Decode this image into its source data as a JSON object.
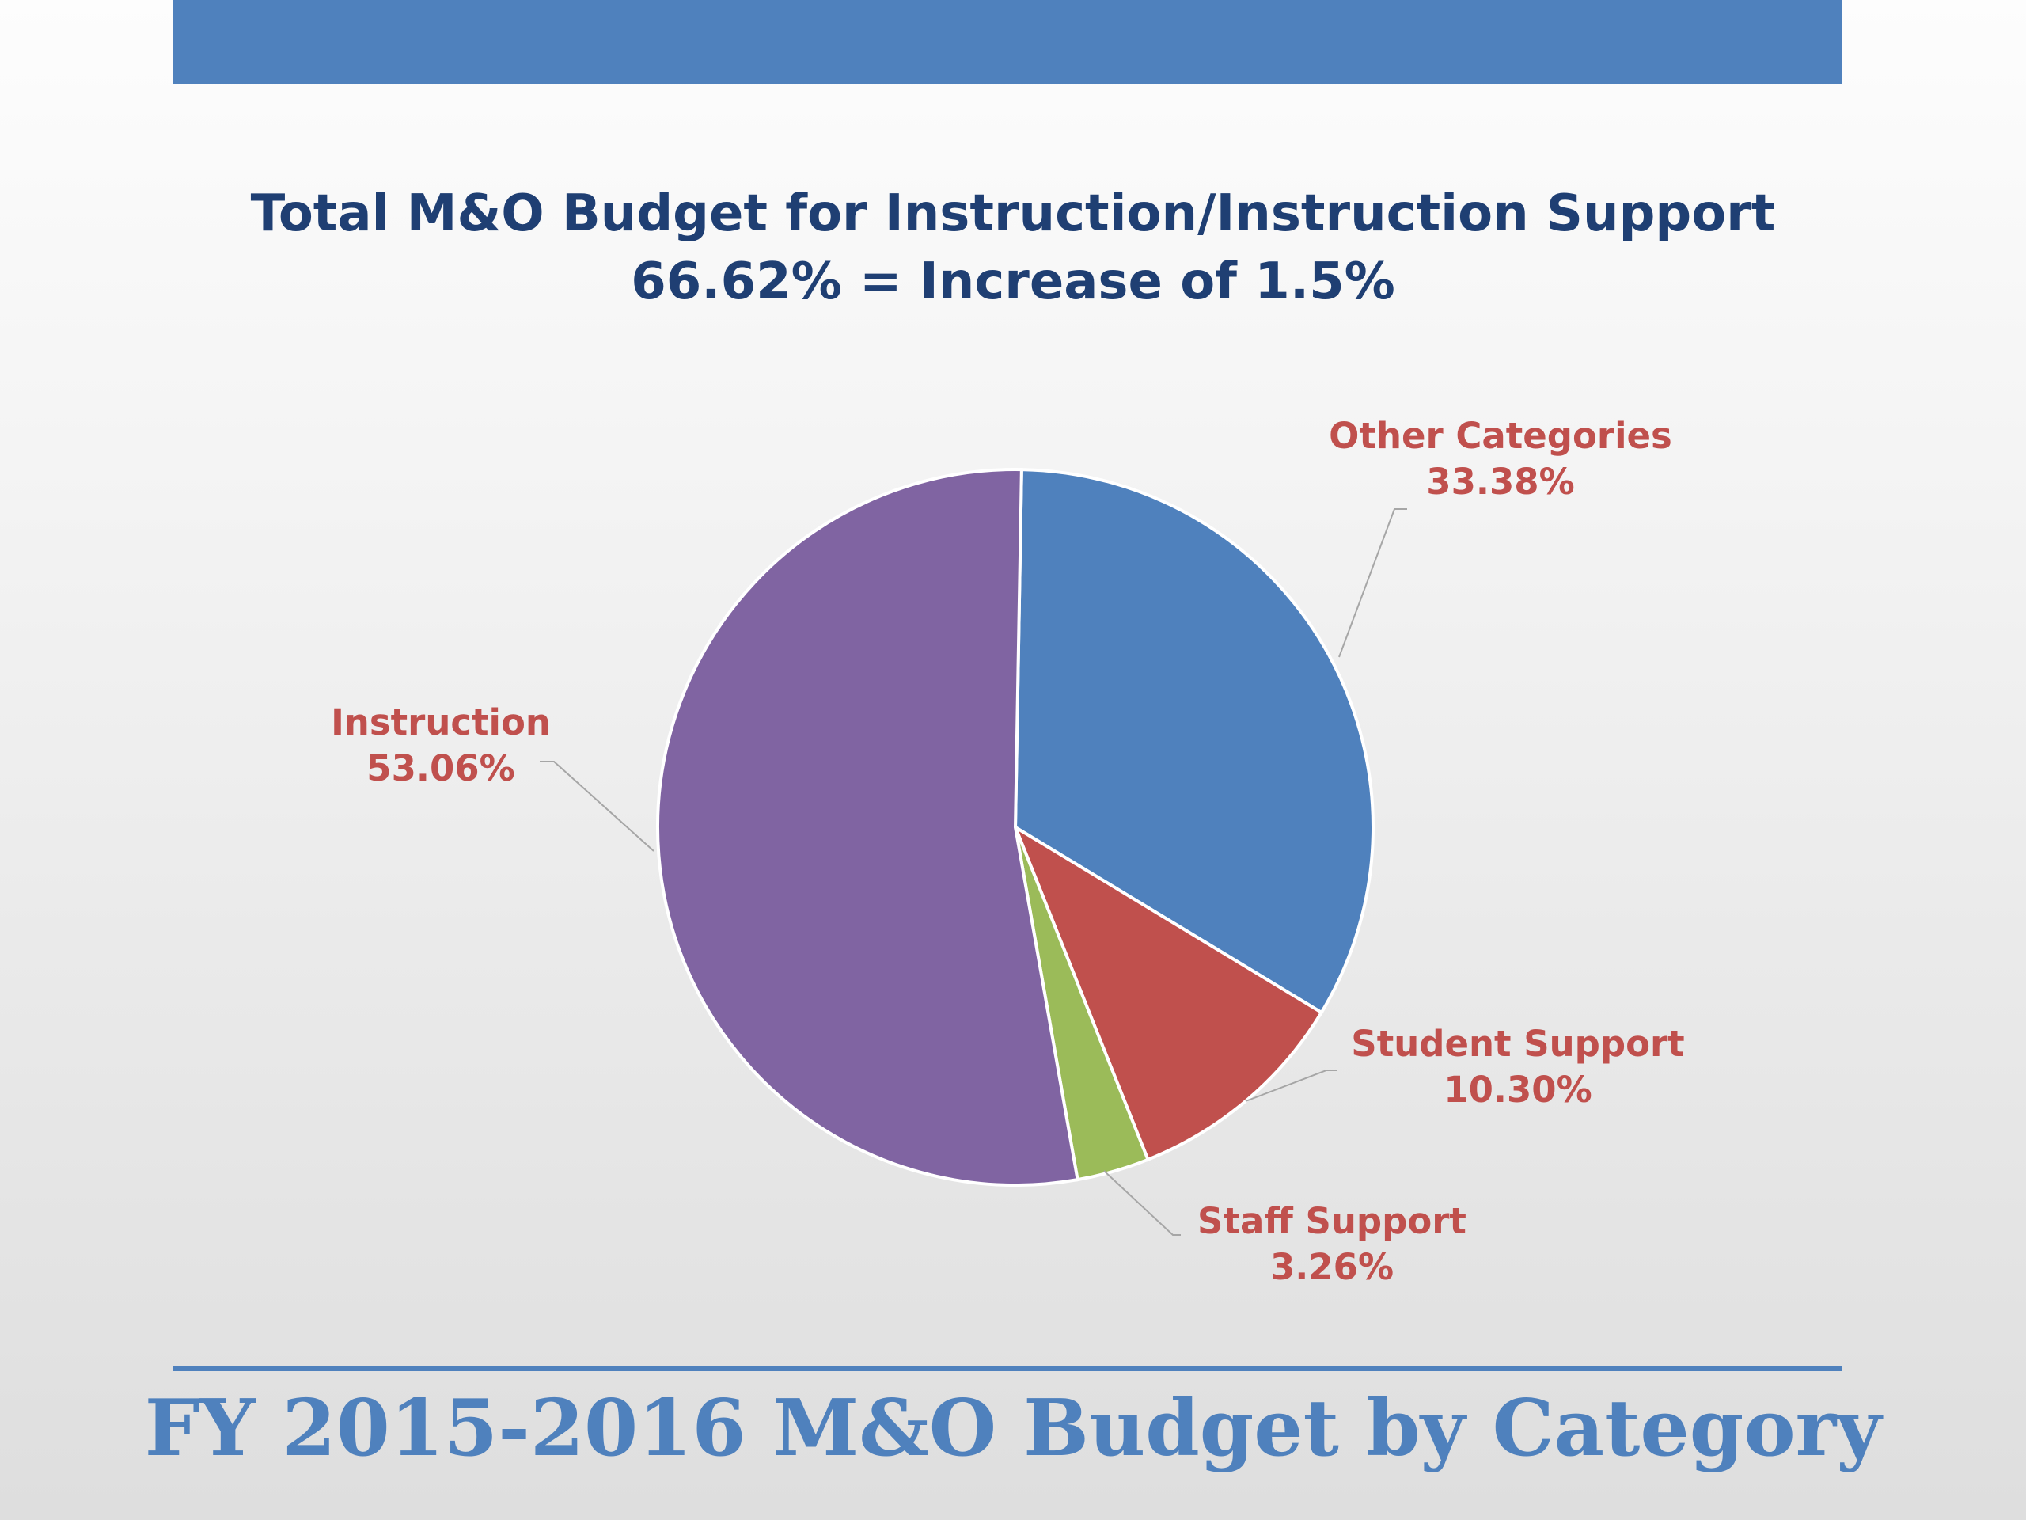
{
  "slide": {
    "footer_title": "FY 2015-2016 M&O Budget by Category",
    "accent_color": "#4f81bd"
  },
  "chart_data": {
    "type": "pie",
    "title": "Total M&O Budget for Instruction/Instruction Support",
    "subtitle": "66.62%  =  Increase of 1.5%",
    "slices": [
      {
        "name": "Other Categories",
        "value": 33.38,
        "label": "33.38%",
        "color": "#4f81bd"
      },
      {
        "name": "Student Support",
        "value": 10.3,
        "label": "10.30%",
        "color": "#c0504d"
      },
      {
        "name": "Staff Support",
        "value": 3.26,
        "label": "3.26%",
        "color": "#9bbb59"
      },
      {
        "name": "Instruction",
        "value": 53.06,
        "label": "53.06%",
        "color": "#8064a2"
      }
    ],
    "label_color": "#c0504d",
    "legend": "none"
  }
}
